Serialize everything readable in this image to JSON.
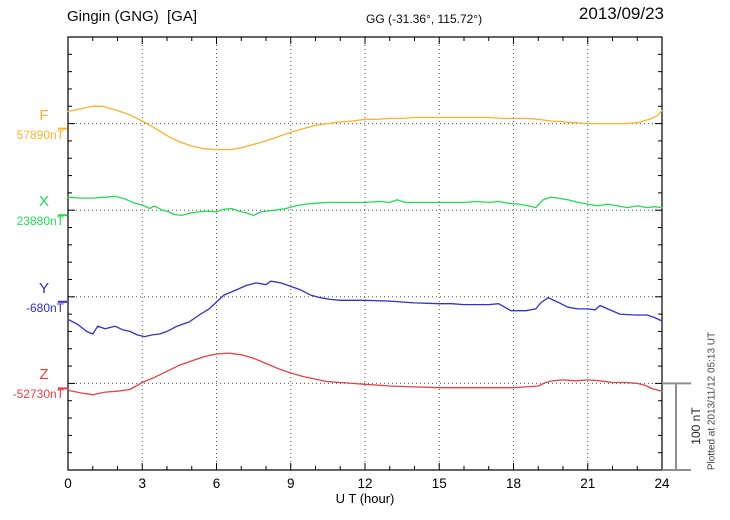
{
  "chart_data": {
    "type": "line",
    "station_title": "Gingin (GNG)  [GA]",
    "coordinates": "GG (-31.36°, 115.72°)",
    "date": "2013/09/23",
    "plotted_at": "Plotted at 2013/11/12 05:13 UT",
    "x": {
      "label": "U T (hour)",
      "min": 0,
      "max": 24,
      "tick_labels": [
        "0",
        "3",
        "6",
        "9",
        "12",
        "15",
        "18",
        "21",
        "24"
      ],
      "major_tick_every_hours": 3,
      "minor_tick_every_hours": 1,
      "grid_at_hours": [
        3,
        6,
        9,
        12,
        15,
        18,
        21
      ],
      "grid_style": "dotted"
    },
    "y": {
      "minor_tick_nT": 20,
      "baseline_spacing_nT": 100,
      "scale_bar_label": "100 nT",
      "scale_bar_nT": 100,
      "grid_style": "dotted-baselines"
    },
    "series": [
      {
        "name": "F",
        "baseline_label": "57890nT",
        "baseline_nT": 57890,
        "color": "#FFB129",
        "points_hour_offsetnT": [
          [
            0,
            14
          ],
          [
            0.5,
            17
          ],
          [
            1,
            20
          ],
          [
            1.4,
            20
          ],
          [
            2,
            15
          ],
          [
            2.5,
            10
          ],
          [
            3,
            3
          ],
          [
            3.5,
            -5
          ],
          [
            4,
            -14
          ],
          [
            4.5,
            -21
          ],
          [
            5,
            -26
          ],
          [
            5.5,
            -29
          ],
          [
            6,
            -30
          ],
          [
            6.6,
            -30
          ],
          [
            7,
            -28
          ],
          [
            7.5,
            -24
          ],
          [
            8,
            -20
          ],
          [
            8.5,
            -15
          ],
          [
            9,
            -10
          ],
          [
            9.5,
            -6
          ],
          [
            10,
            -2
          ],
          [
            10.5,
            0
          ],
          [
            11,
            2
          ],
          [
            11.5,
            3
          ],
          [
            12,
            5
          ],
          [
            12.5,
            5
          ],
          [
            13,
            6
          ],
          [
            13.5,
            6
          ],
          [
            14,
            7
          ],
          [
            15,
            7
          ],
          [
            16,
            7
          ],
          [
            17,
            7
          ],
          [
            17.5,
            6
          ],
          [
            18,
            6
          ],
          [
            18.5,
            6
          ],
          [
            19,
            5
          ],
          [
            19.5,
            3
          ],
          [
            20,
            2
          ],
          [
            20.5,
            1
          ],
          [
            21,
            0
          ],
          [
            21.5,
            0
          ],
          [
            22,
            0
          ],
          [
            22.5,
            0
          ],
          [
            23,
            1
          ],
          [
            23.5,
            5
          ],
          [
            23.8,
            9
          ],
          [
            24,
            15
          ]
        ]
      },
      {
        "name": "X",
        "baseline_label": "23880nT",
        "baseline_nT": 23880,
        "color": "#22DD55",
        "points_hour_offsetnT": [
          [
            0,
            15
          ],
          [
            0.5,
            14
          ],
          [
            1,
            14
          ],
          [
            1.5,
            15
          ],
          [
            1.9,
            16
          ],
          [
            2.3,
            13
          ],
          [
            2.7,
            8
          ],
          [
            3,
            6
          ],
          [
            3.3,
            2
          ],
          [
            3.5,
            5
          ],
          [
            3.8,
            0
          ],
          [
            4,
            -1
          ],
          [
            4.3,
            -5
          ],
          [
            4.6,
            -6
          ],
          [
            5,
            -3
          ],
          [
            5.3,
            -2
          ],
          [
            5.6,
            -1
          ],
          [
            6,
            -2
          ],
          [
            6.3,
            1
          ],
          [
            6.6,
            2
          ],
          [
            6.9,
            -1
          ],
          [
            7.2,
            -3
          ],
          [
            7.5,
            -6
          ],
          [
            7.8,
            -2
          ],
          [
            8,
            -1
          ],
          [
            8.4,
            0
          ],
          [
            8.8,
            2
          ],
          [
            9.2,
            5
          ],
          [
            9.6,
            7
          ],
          [
            10,
            8
          ],
          [
            10.5,
            9
          ],
          [
            11,
            9
          ],
          [
            12,
            9
          ],
          [
            12.6,
            10
          ],
          [
            13,
            9
          ],
          [
            13.3,
            12
          ],
          [
            13.6,
            9
          ],
          [
            14,
            9
          ],
          [
            15,
            9
          ],
          [
            16,
            9
          ],
          [
            16.5,
            10
          ],
          [
            17,
            9
          ],
          [
            17.4,
            10
          ],
          [
            17.8,
            8
          ],
          [
            18.2,
            7
          ],
          [
            18.6,
            5
          ],
          [
            18.9,
            3
          ],
          [
            19.2,
            12
          ],
          [
            19.5,
            15
          ],
          [
            19.8,
            14
          ],
          [
            20.2,
            12
          ],
          [
            20.6,
            9
          ],
          [
            21,
            7
          ],
          [
            21.4,
            5
          ],
          [
            21.8,
            7
          ],
          [
            22.2,
            5
          ],
          [
            22.6,
            3
          ],
          [
            23,
            5
          ],
          [
            23.4,
            3
          ],
          [
            23.7,
            4
          ],
          [
            24,
            3
          ]
        ]
      },
      {
        "name": "Y",
        "baseline_label": "-680nT",
        "baseline_nT": -680,
        "color": "#3030CF",
        "points_hour_offsetnT": [
          [
            0,
            -26
          ],
          [
            0.4,
            -32
          ],
          [
            0.75,
            -40
          ],
          [
            1,
            -43
          ],
          [
            1.2,
            -34
          ],
          [
            1.5,
            -37
          ],
          [
            1.9,
            -34
          ],
          [
            2.2,
            -38
          ],
          [
            2.5,
            -40
          ],
          [
            2.8,
            -44
          ],
          [
            3.1,
            -46
          ],
          [
            3.4,
            -44
          ],
          [
            3.7,
            -43
          ],
          [
            4,
            -40
          ],
          [
            4.4,
            -34
          ],
          [
            4.9,
            -29
          ],
          [
            5.3,
            -21
          ],
          [
            5.7,
            -14
          ],
          [
            6,
            -6
          ],
          [
            6.3,
            2
          ],
          [
            6.8,
            8
          ],
          [
            7.2,
            13
          ],
          [
            7.6,
            16
          ],
          [
            8,
            14
          ],
          [
            8.2,
            18
          ],
          [
            8.6,
            16
          ],
          [
            9,
            12
          ],
          [
            9.4,
            8
          ],
          [
            9.8,
            2
          ],
          [
            10.2,
            -1
          ],
          [
            10.6,
            -3
          ],
          [
            11,
            -4
          ],
          [
            12,
            -4
          ],
          [
            13,
            -5
          ],
          [
            14,
            -7
          ],
          [
            15,
            -8
          ],
          [
            15.5,
            -8
          ],
          [
            16,
            -9
          ],
          [
            16.5,
            -9
          ],
          [
            17,
            -9
          ],
          [
            17.4,
            -8
          ],
          [
            17.9,
            -16
          ],
          [
            18.5,
            -16
          ],
          [
            18.9,
            -14
          ],
          [
            19.1,
            -7
          ],
          [
            19.4,
            -1
          ],
          [
            19.7,
            -5
          ],
          [
            20.2,
            -12
          ],
          [
            20.6,
            -14
          ],
          [
            21,
            -14
          ],
          [
            21.3,
            -15
          ],
          [
            21.5,
            -10
          ],
          [
            21.8,
            -14
          ],
          [
            22.3,
            -20
          ],
          [
            22.9,
            -21
          ],
          [
            23.4,
            -21
          ],
          [
            23.7,
            -24
          ],
          [
            24,
            -28
          ]
        ]
      },
      {
        "name": "Z",
        "baseline_label": "-52730nT",
        "baseline_nT": -52730,
        "color": "#E84040",
        "points_hour_offsetnT": [
          [
            0,
            -8
          ],
          [
            0.5,
            -11
          ],
          [
            1,
            -13
          ],
          [
            1.5,
            -10
          ],
          [
            2,
            -9
          ],
          [
            2.5,
            -7
          ],
          [
            3,
            1
          ],
          [
            3.5,
            7
          ],
          [
            4,
            14
          ],
          [
            4.5,
            21
          ],
          [
            5,
            26
          ],
          [
            5.5,
            31
          ],
          [
            6,
            34
          ],
          [
            6.5,
            35
          ],
          [
            7,
            33
          ],
          [
            7.5,
            29
          ],
          [
            8,
            23
          ],
          [
            8.5,
            17
          ],
          [
            9,
            12
          ],
          [
            9.5,
            8
          ],
          [
            10,
            5
          ],
          [
            10.5,
            2
          ],
          [
            11,
            1
          ],
          [
            11.5,
            0
          ],
          [
            12,
            -1
          ],
          [
            12.5,
            -2
          ],
          [
            13,
            -3
          ],
          [
            14,
            -4
          ],
          [
            15,
            -5
          ],
          [
            16,
            -5
          ],
          [
            17,
            -5
          ],
          [
            18,
            -5
          ],
          [
            18.5,
            -4
          ],
          [
            19,
            -3
          ],
          [
            19.3,
            1
          ],
          [
            19.6,
            3
          ],
          [
            20,
            4
          ],
          [
            20.5,
            3
          ],
          [
            21,
            4
          ],
          [
            21.5,
            3
          ],
          [
            22,
            1
          ],
          [
            22.5,
            1
          ],
          [
            23,
            0
          ],
          [
            23.3,
            -2
          ],
          [
            23.6,
            -6
          ],
          [
            24,
            -9
          ]
        ]
      }
    ],
    "colors": {
      "frame": "#000000",
      "grid": "#555555",
      "scale_bar": "#8f8f8f"
    }
  }
}
